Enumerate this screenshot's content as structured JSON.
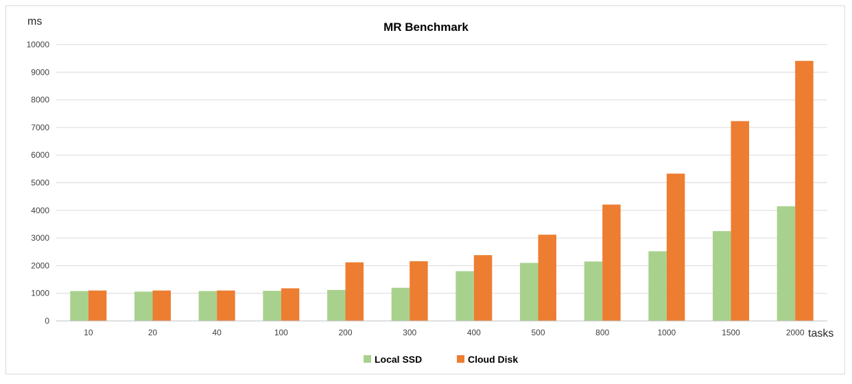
{
  "chart_data": {
    "type": "bar",
    "title": "MR Benchmark",
    "ylabel": "ms",
    "xlabel": "tasks",
    "categories": [
      "10",
      "20",
      "40",
      "100",
      "200",
      "300",
      "400",
      "500",
      "800",
      "1000",
      "1500",
      "2000"
    ],
    "series": [
      {
        "name": "Local SSD",
        "color": "#a9d18e",
        "values": [
          1080,
          1060,
          1080,
          1090,
          1120,
          1200,
          1800,
          2100,
          2150,
          2520,
          3250,
          4150
        ]
      },
      {
        "name": "Cloud Disk",
        "color": "#ed7d31",
        "values": [
          1100,
          1100,
          1100,
          1180,
          2120,
          2160,
          2380,
          3120,
          4210,
          5330,
          7230,
          9410
        ]
      }
    ],
    "ylim": [
      0,
      10000
    ],
    "yticks": [
      0,
      1000,
      2000,
      3000,
      4000,
      5000,
      6000,
      7000,
      8000,
      9000,
      10000
    ],
    "grid": true,
    "legend_position": "bottom"
  }
}
